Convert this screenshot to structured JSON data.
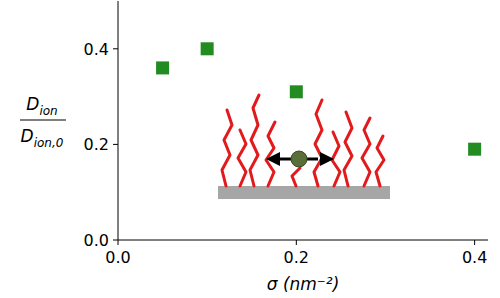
{
  "chart_data": {
    "type": "scatter",
    "xlabel": "σ (nm⁻²)",
    "ylabel": {
      "numerator": {
        "text": "D",
        "sub": "ion"
      },
      "denominator": {
        "text": "D",
        "sub": "ion,0"
      }
    },
    "x": [
      0.05,
      0.1,
      0.2,
      0.4
    ],
    "values": [
      0.36,
      0.4,
      0.31,
      0.19
    ],
    "color": "#228b22",
    "marker": "square",
    "xlim": [
      0,
      0.415
    ],
    "ylim": [
      0,
      0.5
    ],
    "xticks": [
      {
        "value": 0,
        "label": "0.0"
      },
      {
        "value": 0.2,
        "label": "0.2"
      },
      {
        "value": 0.4,
        "label": "0.4"
      }
    ],
    "yticks": [
      {
        "value": 0,
        "label": "0.0"
      },
      {
        "value": 0.2,
        "label": "0.2"
      },
      {
        "value": 0.4,
        "label": "0.4"
      }
    ],
    "grid": false
  }
}
